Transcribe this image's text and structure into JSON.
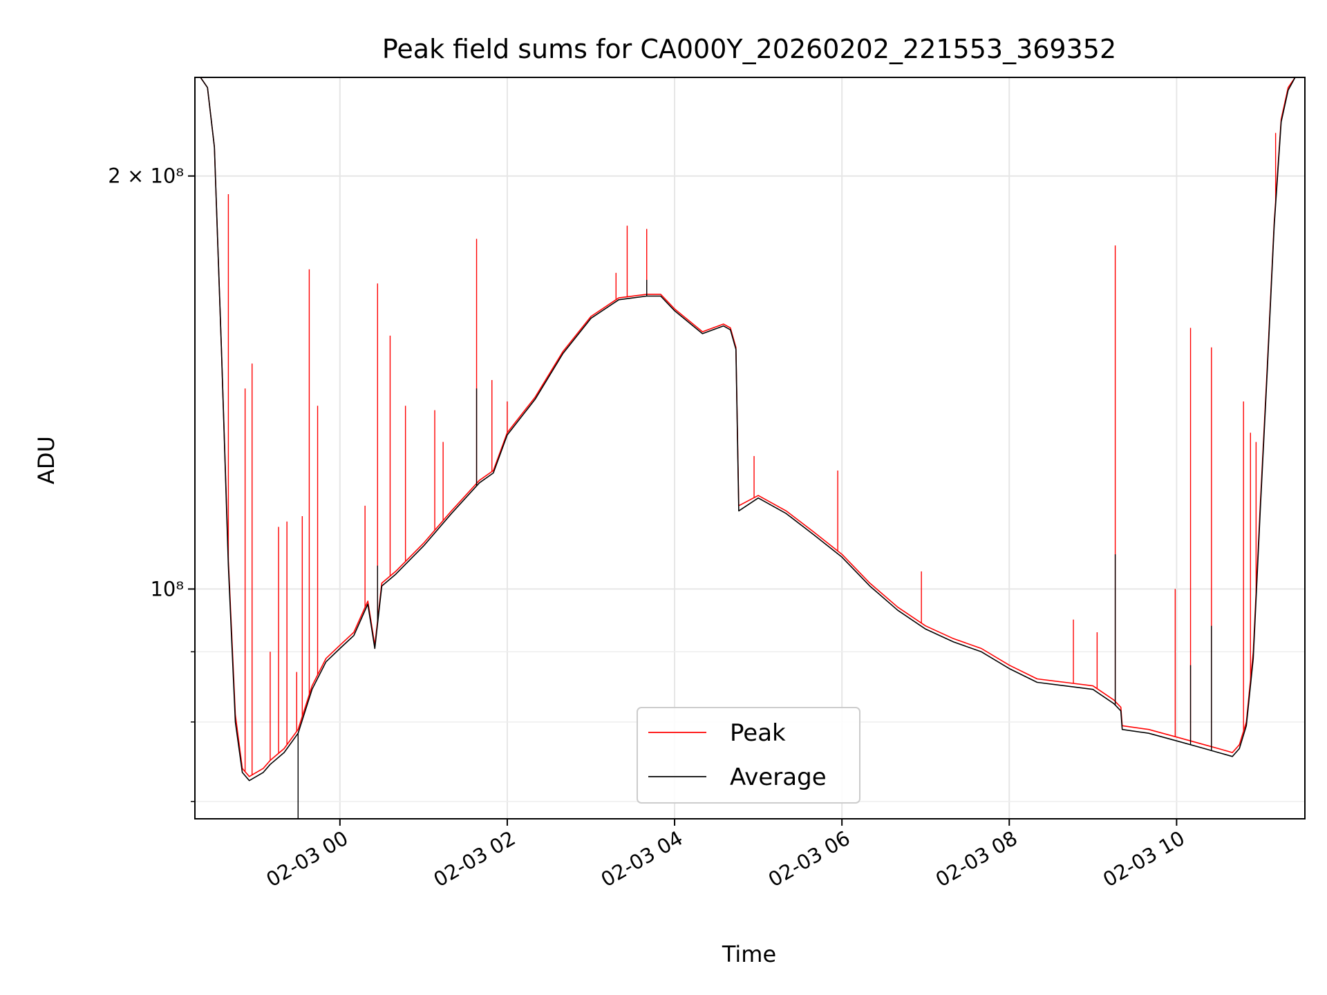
{
  "chart_data": {
    "type": "line",
    "title": "Peak field sums for CA000Y_20260202_221553_369352",
    "xlabel": "Time",
    "ylabel": "ADU",
    "y_scale": "log",
    "grid": true,
    "legend_placement": "lower center",
    "xlim": [
      "2026-02-02T22:16",
      "2026-02-03T11:32"
    ],
    "ylim": [
      68000000,
      236000000
    ],
    "x_ticks": [
      {
        "t": "2026-02-03T00:00",
        "label": "02-03 00"
      },
      {
        "t": "2026-02-03T02:00",
        "label": "02-03 02"
      },
      {
        "t": "2026-02-03T04:00",
        "label": "02-03 04"
      },
      {
        "t": "2026-02-03T06:00",
        "label": "02-03 06"
      },
      {
        "t": "2026-02-03T08:00",
        "label": "02-03 08"
      },
      {
        "t": "2026-02-03T10:00",
        "label": "02-03 10"
      }
    ],
    "y_ticks": [
      {
        "v": 200000000,
        "label": "2 × 10⁸"
      },
      {
        "v": 100000000,
        "label": "10⁸"
      }
    ],
    "y_minor_ticks": [
      70000000,
      80000000,
      90000000
    ],
    "series": [
      {
        "name": "Peak",
        "color": "#ff0000",
        "x": [
          "2026-02-02T22:16",
          "2026-02-02T22:20",
          "2026-02-02T22:25",
          "2026-02-02T22:30",
          "2026-02-02T22:35",
          "2026-02-02T22:40",
          "2026-02-02T22:45",
          "2026-02-02T22:50",
          "2026-02-02T22:55",
          "2026-02-02T23:00",
          "2026-02-02T23:05",
          "2026-02-02T23:10",
          "2026-02-02T23:20",
          "2026-02-02T23:30",
          "2026-02-02T23:40",
          "2026-02-02T23:50",
          "2026-02-03T00:00",
          "2026-02-03T00:10",
          "2026-02-03T00:20",
          "2026-02-03T00:25",
          "2026-02-03T00:30",
          "2026-02-03T00:40",
          "2026-02-03T01:00",
          "2026-02-03T01:20",
          "2026-02-03T01:40",
          "2026-02-03T01:50",
          "2026-02-03T02:00",
          "2026-02-03T02:20",
          "2026-02-03T02:40",
          "2026-02-03T03:00",
          "2026-02-03T03:20",
          "2026-02-03T03:40",
          "2026-02-03T03:50",
          "2026-02-03T04:00",
          "2026-02-03T04:20",
          "2026-02-03T04:35",
          "2026-02-03T04:40",
          "2026-02-03T04:44",
          "2026-02-03T04:46",
          "2026-02-03T05:00",
          "2026-02-03T05:20",
          "2026-02-03T05:40",
          "2026-02-03T06:00",
          "2026-02-03T06:20",
          "2026-02-03T06:40",
          "2026-02-03T07:00",
          "2026-02-03T07:20",
          "2026-02-03T07:40",
          "2026-02-03T08:00",
          "2026-02-03T08:20",
          "2026-02-03T08:40",
          "2026-02-03T09:00",
          "2026-02-03T09:15",
          "2026-02-03T09:20",
          "2026-02-03T09:21",
          "2026-02-03T09:40",
          "2026-02-03T10:00",
          "2026-02-03T10:20",
          "2026-02-03T10:30",
          "2026-02-03T10:40",
          "2026-02-03T10:45",
          "2026-02-03T10:50",
          "2026-02-03T10:55",
          "2026-02-03T11:00",
          "2026-02-03T11:05",
          "2026-02-03T11:10",
          "2026-02-03T11:15",
          "2026-02-03T11:20",
          "2026-02-03T11:25",
          "2026-02-03T11:32"
        ],
        "y": [
          236000000,
          236000000,
          232000000,
          210000000,
          150000000,
          105000000,
          81000000,
          74000000,
          73000000,
          73500000,
          74000000,
          75000000,
          76500000,
          79000000,
          85000000,
          89000000,
          91000000,
          93000000,
          98000000,
          91000000,
          101000000,
          103000000,
          108000000,
          114000000,
          120000000,
          122000000,
          130000000,
          138000000,
          149000000,
          158000000,
          163000000,
          164000000,
          164000000,
          160000000,
          154000000,
          156000000,
          155000000,
          150000000,
          115000000,
          117000000,
          114000000,
          110000000,
          106000000,
          101000000,
          97000000,
          94000000,
          92000000,
          90500000,
          88000000,
          86000000,
          85500000,
          85000000,
          83000000,
          82000000,
          79500000,
          79000000,
          78000000,
          77000000,
          76500000,
          76000000,
          77000000,
          80000000,
          90000000,
          115000000,
          145000000,
          185000000,
          220000000,
          232000000,
          236000000,
          236000000
        ],
        "spikes": [
          {
            "t": "2026-02-02T22:40",
            "y": 194000000
          },
          {
            "t": "2026-02-02T22:52",
            "y": 140000000
          },
          {
            "t": "2026-02-02T22:57",
            "y": 146000000
          },
          {
            "t": "2026-02-02T23:10",
            "y": 90000000
          },
          {
            "t": "2026-02-02T23:16",
            "y": 111000000
          },
          {
            "t": "2026-02-02T23:22",
            "y": 112000000
          },
          {
            "t": "2026-02-02T23:29",
            "y": 87000000
          },
          {
            "t": "2026-02-02T23:33",
            "y": 113000000
          },
          {
            "t": "2026-02-02T23:38",
            "y": 171000000
          },
          {
            "t": "2026-02-02T23:44",
            "y": 136000000
          },
          {
            "t": "2026-02-03T00:18",
            "y": 115000000
          },
          {
            "t": "2026-02-03T00:27",
            "y": 167000000
          },
          {
            "t": "2026-02-03T00:36",
            "y": 153000000
          },
          {
            "t": "2026-02-03T00:47",
            "y": 136000000
          },
          {
            "t": "2026-02-03T01:08",
            "y": 135000000
          },
          {
            "t": "2026-02-03T01:14",
            "y": 128000000
          },
          {
            "t": "2026-02-03T01:38",
            "y": 180000000
          },
          {
            "t": "2026-02-03T01:49",
            "y": 142000000
          },
          {
            "t": "2026-02-03T02:00",
            "y": 137000000
          },
          {
            "t": "2026-02-03T03:18",
            "y": 170000000
          },
          {
            "t": "2026-02-03T03:26",
            "y": 184000000
          },
          {
            "t": "2026-02-03T03:40",
            "y": 183000000
          },
          {
            "t": "2026-02-03T04:57",
            "y": 125000000
          },
          {
            "t": "2026-02-03T05:57",
            "y": 122000000
          },
          {
            "t": "2026-02-03T06:57",
            "y": 103000000
          },
          {
            "t": "2026-02-03T08:46",
            "y": 95000000
          },
          {
            "t": "2026-02-03T09:03",
            "y": 93000000
          },
          {
            "t": "2026-02-03T09:16",
            "y": 178000000
          },
          {
            "t": "2026-02-03T09:59",
            "y": 100000000
          },
          {
            "t": "2026-02-03T10:10",
            "y": 155000000
          },
          {
            "t": "2026-02-03T10:25",
            "y": 150000000
          },
          {
            "t": "2026-02-03T10:48",
            "y": 137000000
          },
          {
            "t": "2026-02-03T10:53",
            "y": 130000000
          },
          {
            "t": "2026-02-03T10:57",
            "y": 128000000
          },
          {
            "t": "2026-02-03T11:11",
            "y": 215000000
          }
        ]
      },
      {
        "name": "Average",
        "color": "#000000",
        "x": [
          "2026-02-02T22:16",
          "2026-02-02T22:20",
          "2026-02-02T22:25",
          "2026-02-02T22:30",
          "2026-02-02T22:35",
          "2026-02-02T22:40",
          "2026-02-02T22:45",
          "2026-02-02T22:50",
          "2026-02-02T22:55",
          "2026-02-02T23:00",
          "2026-02-02T23:05",
          "2026-02-02T23:10",
          "2026-02-02T23:20",
          "2026-02-02T23:30",
          "2026-02-02T23:40",
          "2026-02-02T23:50",
          "2026-02-03T00:00",
          "2026-02-03T00:10",
          "2026-02-03T00:20",
          "2026-02-03T00:25",
          "2026-02-03T00:30",
          "2026-02-03T00:40",
          "2026-02-03T01:00",
          "2026-02-03T01:20",
          "2026-02-03T01:40",
          "2026-02-03T01:50",
          "2026-02-03T02:00",
          "2026-02-03T02:20",
          "2026-02-03T02:40",
          "2026-02-03T03:00",
          "2026-02-03T03:20",
          "2026-02-03T03:40",
          "2026-02-03T03:50",
          "2026-02-03T04:00",
          "2026-02-03T04:20",
          "2026-02-03T04:35",
          "2026-02-03T04:40",
          "2026-02-03T04:44",
          "2026-02-03T04:46",
          "2026-02-03T05:00",
          "2026-02-03T05:20",
          "2026-02-03T05:40",
          "2026-02-03T06:00",
          "2026-02-03T06:20",
          "2026-02-03T06:40",
          "2026-02-03T07:00",
          "2026-02-03T07:20",
          "2026-02-03T07:40",
          "2026-02-03T08:00",
          "2026-02-03T08:20",
          "2026-02-03T08:40",
          "2026-02-03T09:00",
          "2026-02-03T09:15",
          "2026-02-03T09:20",
          "2026-02-03T09:21",
          "2026-02-03T09:40",
          "2026-02-03T10:00",
          "2026-02-03T10:20",
          "2026-02-03T10:30",
          "2026-02-03T10:40",
          "2026-02-03T10:45",
          "2026-02-03T10:50",
          "2026-02-03T10:55",
          "2026-02-03T11:00",
          "2026-02-03T11:05",
          "2026-02-03T11:10",
          "2026-02-03T11:15",
          "2026-02-03T11:20",
          "2026-02-03T11:25",
          "2026-02-03T11:32"
        ],
        "y": [
          236000000,
          236000000,
          232000000,
          210000000,
          150000000,
          104000000,
          80000000,
          73500000,
          72500000,
          73000000,
          73500000,
          74500000,
          76000000,
          78500000,
          84500000,
          88500000,
          90500000,
          92500000,
          97500000,
          90500000,
          100500000,
          102500000,
          107500000,
          113500000,
          119500000,
          121500000,
          129500000,
          137500000,
          148500000,
          157500000,
          162500000,
          163500000,
          163500000,
          159500000,
          153500000,
          155500000,
          154500000,
          149500000,
          114000000,
          116500000,
          113500000,
          109500000,
          105500000,
          100500000,
          96500000,
          93500000,
          91500000,
          90000000,
          87500000,
          85500000,
          85000000,
          84500000,
          82500000,
          81500000,
          79000000,
          78500000,
          77500000,
          76500000,
          76000000,
          75500000,
          76500000,
          79500000,
          89000000,
          114000000,
          144000000,
          184000000,
          219000000,
          231000000,
          236000000,
          236000000
        ],
        "spikes": [
          {
            "t": "2026-02-02T23:30",
            "y": 66000000
          },
          {
            "t": "2026-02-03T00:27",
            "y": 104000000
          },
          {
            "t": "2026-02-03T01:38",
            "y": 140000000
          },
          {
            "t": "2026-02-03T03:40",
            "y": 168000000
          },
          {
            "t": "2026-02-03T09:16",
            "y": 106000000
          },
          {
            "t": "2026-02-03T10:10",
            "y": 88000000
          },
          {
            "t": "2026-02-03T10:25",
            "y": 94000000
          }
        ]
      }
    ]
  }
}
